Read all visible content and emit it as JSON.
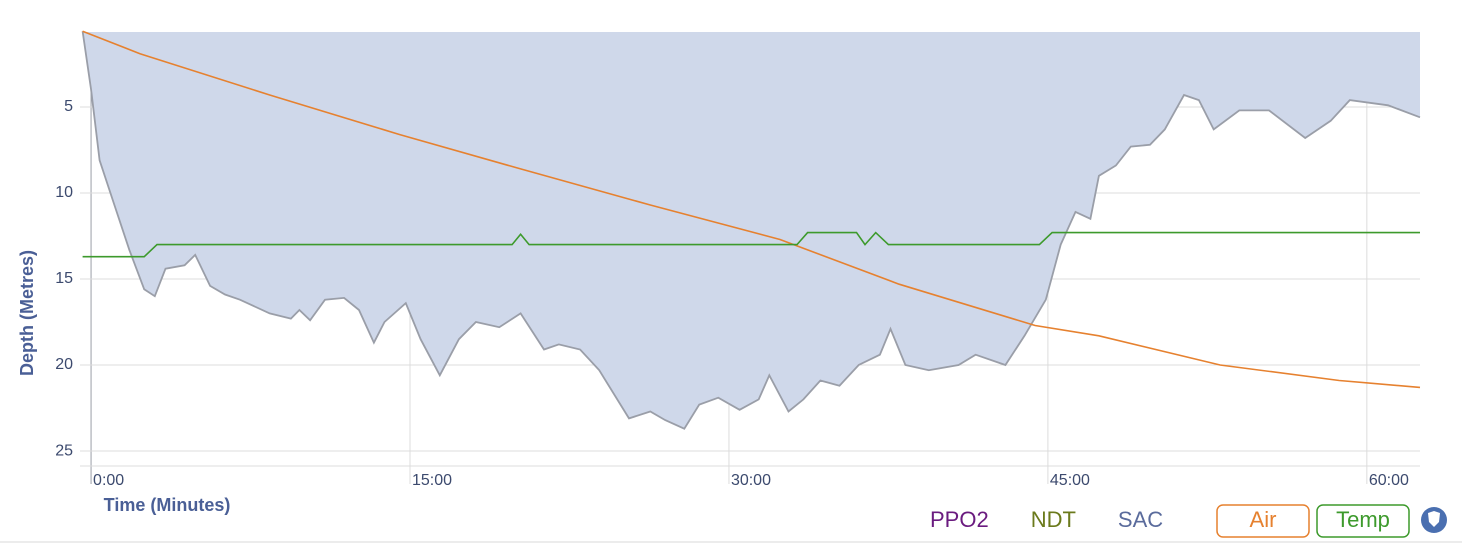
{
  "chart_data": {
    "type": "line",
    "y_inverted": true,
    "xlabel": "Time (Minutes)",
    "ylabel": "Depth (Metres)",
    "xlim": [
      -0.52,
      62.5
    ],
    "ylim": [
      0.64,
      25.87
    ],
    "xticks": [
      {
        "value": 0,
        "label": "0:00"
      },
      {
        "value": 15,
        "label": "15:00"
      },
      {
        "value": 30,
        "label": "30:00"
      },
      {
        "value": 45,
        "label": "45:00"
      },
      {
        "value": 60,
        "label": "60:00"
      }
    ],
    "yticks": [
      5,
      10,
      15,
      20,
      25
    ],
    "grid": true,
    "series": [
      {
        "color": "#9a9ea8",
        "fill": "#cfd8ea",
        "x": [
          -0.4,
          0,
          0.4,
          1.1,
          1.8,
          2.5,
          3.0,
          3.5,
          4.4,
          4.9,
          5.6,
          6.3,
          7.0,
          8.4,
          9.4,
          9.8,
          10.3,
          11.0,
          11.9,
          12.6,
          13.3,
          13.8,
          14.8,
          15.5,
          16.4,
          17.3,
          18.1,
          19.2,
          20.2,
          21.3,
          22.0,
          23.0,
          23.9,
          25.3,
          26.3,
          27.0,
          27.9,
          28.6,
          29.5,
          30.5,
          31.4,
          31.9,
          32.8,
          33.5,
          34.3,
          35.2,
          36.1,
          37.1,
          37.6,
          38.3,
          39.4,
          40.8,
          41.6,
          43.0,
          43.9,
          44.9,
          45.6,
          46.3,
          47.0,
          47.4,
          48.2,
          48.9,
          49.8,
          50.5,
          51.4,
          52.1,
          52.8,
          54.0,
          55.4,
          57.1,
          58.3,
          59.2,
          61.0,
          62.5
        ],
        "values": [
          0.6,
          4.0,
          8.1,
          10.7,
          13.3,
          15.6,
          16.0,
          14.4,
          14.2,
          13.6,
          15.4,
          15.9,
          16.2,
          17.0,
          17.3,
          16.8,
          17.4,
          16.2,
          16.1,
          16.8,
          18.7,
          17.5,
          16.4,
          18.5,
          20.6,
          18.5,
          17.5,
          17.8,
          17.0,
          19.1,
          18.8,
          19.1,
          20.3,
          23.1,
          22.7,
          23.2,
          23.7,
          22.3,
          21.9,
          22.6,
          22.0,
          20.6,
          22.7,
          22.0,
          20.9,
          21.2,
          20.0,
          19.4,
          17.9,
          20.0,
          20.3,
          20.0,
          19.4,
          20.0,
          18.3,
          16.2,
          13.0,
          11.1,
          11.5,
          9.0,
          8.4,
          7.3,
          7.2,
          6.3,
          4.3,
          4.6,
          6.3,
          5.2,
          5.2,
          6.8,
          5.8,
          4.6,
          4.9,
          5.6
        ]
      },
      {
        "name": "Air",
        "color": "#e6812f",
        "x": [
          -0.4,
          2.3,
          8.4,
          14.5,
          20.2,
          26.3,
          32.4,
          38.0,
          44.4,
          47.4,
          53.1,
          58.7,
          62.5
        ],
        "values": [
          0.6,
          1.9,
          4.3,
          6.6,
          8.6,
          10.7,
          12.7,
          15.3,
          17.7,
          18.3,
          20.0,
          20.9,
          21.3
        ]
      },
      {
        "name": "Temp",
        "color": "#3d9a2c",
        "x": [
          -0.4,
          2.5,
          3.1,
          19.8,
          20.2,
          20.6,
          33.2,
          33.7,
          36.0,
          36.4,
          36.9,
          37.5,
          44.6,
          45.2,
          62.5
        ],
        "values": [
          13.7,
          13.7,
          13.0,
          13.0,
          12.4,
          13.0,
          13.0,
          12.3,
          12.3,
          13.0,
          12.3,
          13.0,
          13.0,
          12.3,
          12.3
        ]
      }
    ],
    "toggles": [
      {
        "label": "PPO2",
        "color": "#6a1b7f"
      },
      {
        "label": "NDT",
        "color": "#6b7a1c"
      },
      {
        "label": "SAC",
        "color": "#5a6b9c"
      }
    ]
  }
}
